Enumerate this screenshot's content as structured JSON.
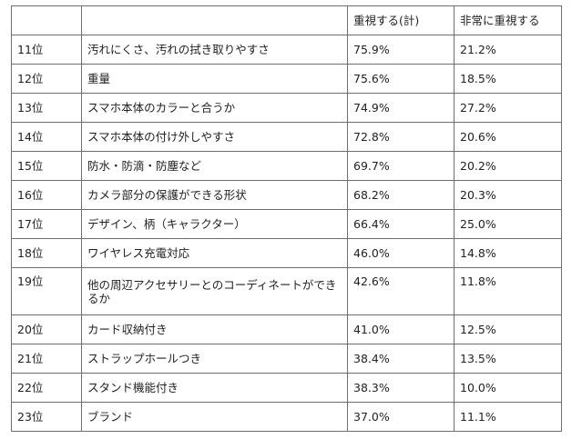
{
  "table": {
    "headers": [
      "",
      "",
      "重視する(計)",
      "非常に重視する"
    ],
    "rows": [
      {
        "rank": "11位",
        "item": "汚れにくさ、汚れの拭き取りやすさ",
        "important_total": "75.9%",
        "very_important": "21.2%"
      },
      {
        "rank": "12位",
        "item": "重量",
        "important_total": "75.6%",
        "very_important": "18.5%"
      },
      {
        "rank": "13位",
        "item": "スマホ本体のカラーと合うか",
        "important_total": "74.9%",
        "very_important": "27.2%"
      },
      {
        "rank": "14位",
        "item": "スマホ本体の付け外しやすさ",
        "important_total": "72.8%",
        "very_important": "20.6%"
      },
      {
        "rank": "15位",
        "item": "防水・防滴・防塵など",
        "important_total": "69.7%",
        "very_important": "20.2%"
      },
      {
        "rank": "16位",
        "item": "カメラ部分の保護ができる形状",
        "important_total": "68.2%",
        "very_important": "20.3%"
      },
      {
        "rank": "17位",
        "item": "デザイン、柄（キャラクター）",
        "important_total": "66.4%",
        "very_important": "25.0%"
      },
      {
        "rank": "18位",
        "item": "ワイヤレス充電対応",
        "important_total": "46.0%",
        "very_important": "14.8%"
      },
      {
        "rank": "19位",
        "item": "他の周辺アクセサリーとのコーディネートができるか",
        "important_total": "42.6%",
        "very_important": "11.8%"
      },
      {
        "rank": "20位",
        "item": "カード収納付き",
        "important_total": "41.0%",
        "very_important": "12.5%"
      },
      {
        "rank": "21位",
        "item": "ストラップホールつき",
        "important_total": "38.4%",
        "very_important": "13.5%"
      },
      {
        "rank": "22位",
        "item": "スタンド機能付き",
        "important_total": "38.3%",
        "very_important": "10.0%"
      },
      {
        "rank": "23位",
        "item": "ブランド",
        "important_total": "37.0%",
        "very_important": "11.1%"
      }
    ]
  }
}
